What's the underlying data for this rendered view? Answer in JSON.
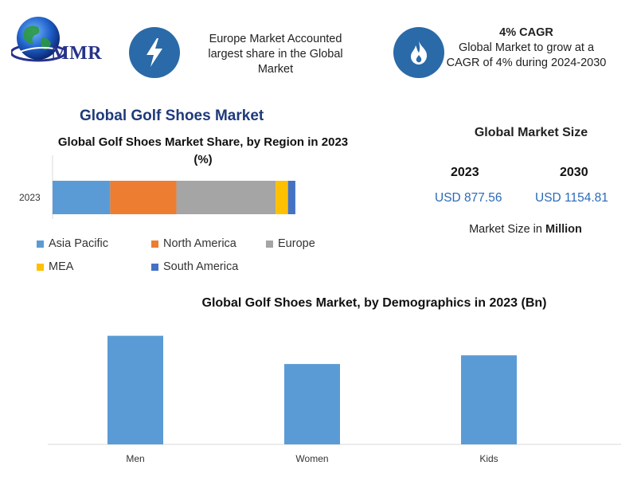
{
  "header": {
    "logo_text": "MMR",
    "europe_note": "Europe Market Accounted largest share in the Global Market",
    "cagr_title": "4% CAGR",
    "cagr_text": "Global Market to grow at a CAGR of 4% during 2024-2030",
    "bolt_icon": "lightning-bolt-icon",
    "flame_icon": "flame-icon"
  },
  "main_title": "Global Golf Shoes Market",
  "market_size": {
    "title": "Global Market Size",
    "years": [
      "2023",
      "2030"
    ],
    "values": [
      "USD 877.56",
      "USD 1154.81"
    ],
    "unit_prefix": "Market Size in",
    "unit_bold": "Million"
  },
  "colors": {
    "asia_pacific": "#5b9bd5",
    "north_america": "#ed7d31",
    "europe": "#a5a5a5",
    "mea": "#ffc000",
    "south_america": "#4472c4",
    "demographic_bar": "#5b9bd5",
    "icon_circle": "#2a6aa8",
    "title_blue": "#1e3a7a",
    "value_blue": "#2a6ab8"
  },
  "chart_data": [
    {
      "type": "bar",
      "orientation": "horizontal-stacked",
      "title": "Global Golf Shoes Market Share, by Region in 2023 (%)",
      "categories": [
        "2023"
      ],
      "series": [
        {
          "name": "Asia Pacific",
          "values": [
            23.5
          ]
        },
        {
          "name": "North America",
          "values": [
            27
          ]
        },
        {
          "name": "Europe",
          "values": [
            40.5
          ]
        },
        {
          "name": "MEA",
          "values": [
            5
          ]
        },
        {
          "name": "South America",
          "values": [
            3
          ]
        }
      ],
      "xlim": [
        0,
        100
      ],
      "legend_position": "bottom",
      "grid": false
    },
    {
      "type": "bar",
      "title": "Global Golf Shoes Market, by Demographics in 2023 (Bn)",
      "categories": [
        "Men",
        "Women",
        "Kids"
      ],
      "values": [
        1.0,
        0.74,
        0.82
      ],
      "xlabel": "",
      "ylabel": "",
      "ylim": [
        0,
        1.1
      ],
      "grid": false
    }
  ]
}
